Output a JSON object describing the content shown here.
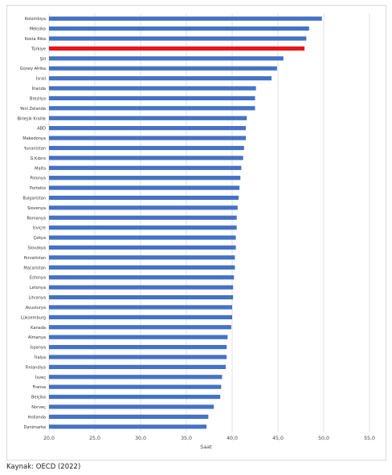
{
  "chart_data": {
    "type": "bar",
    "orientation": "horizontal",
    "categories": [
      "Kolombiya",
      "Meksika",
      "Kosta Rika",
      "Türkiye",
      "Şili",
      "Güney Afrika",
      "İsrail",
      "İrlanda",
      "Brezilya",
      "Yeni Zelanda",
      "Birleşik Krallık",
      "ABD",
      "Makedonya",
      "Yunanistan",
      "G.Kıbrıs",
      "Malta",
      "Polonya",
      "Portekiz",
      "Bulgaristan",
      "Slovenya",
      "Romanya",
      "İsviçre",
      "Çekya",
      "Slovakya",
      "Hırvatistan",
      "Macaristan",
      "Estonya",
      "Letonya",
      "Litvanya",
      "Avusturya",
      "Lüksemburg",
      "Kanada",
      "Almanya",
      "İspanya",
      "İtalya",
      "Finlandiya",
      "İsveç",
      "Fransa",
      "Belçika",
      "Norveç",
      "Hollanda",
      "Danimarka"
    ],
    "values": [
      49.8,
      48.4,
      48.1,
      47.9,
      45.6,
      44.9,
      44.3,
      42.6,
      42.5,
      42.5,
      41.6,
      41.5,
      41.5,
      41.3,
      41.2,
      41.0,
      40.9,
      40.8,
      40.7,
      40.6,
      40.5,
      40.5,
      40.4,
      40.4,
      40.3,
      40.3,
      40.2,
      40.1,
      40.1,
      40.0,
      40.0,
      39.9,
      39.5,
      39.4,
      39.4,
      39.3,
      38.9,
      38.8,
      38.7,
      38.0,
      37.4,
      37.2
    ],
    "highlight": "Türkiye",
    "xlabel": "Saat",
    "xlim": [
      20.0,
      55.0
    ],
    "xticks": [
      "20,0",
      "25,0",
      "30,0",
      "35,0",
      "40,0",
      "45,0",
      "50,0",
      "55,0"
    ],
    "grid": true,
    "colors": {
      "bar": "#4472c4",
      "highlight": "#e8151b",
      "grid": "#d9d9d9"
    }
  },
  "source_text": "Kaynak: OECD (2022)"
}
